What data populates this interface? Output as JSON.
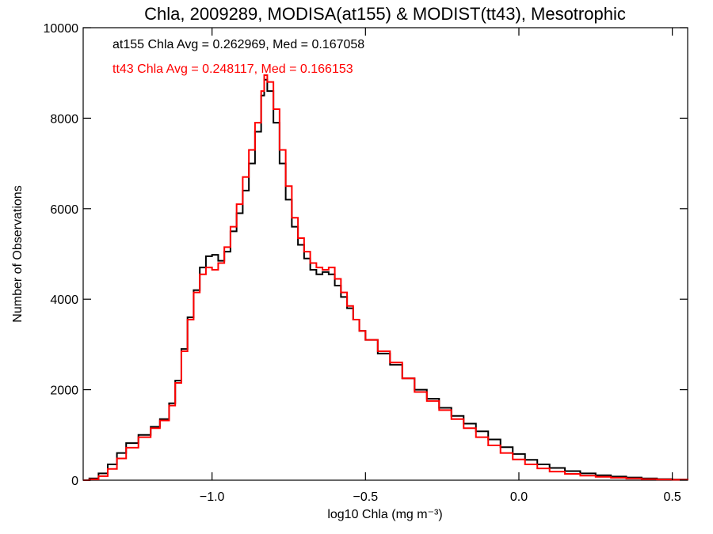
{
  "chart_data": {
    "type": "histogram-step",
    "title": "Chla, 2009289, MODISA(at155) & MODIST(tt43), Mesotrophic",
    "xlabel": "log10 Chla (mg m⁻³)",
    "ylabel": "Number of Observations",
    "xlim": [
      -1.42,
      0.55
    ],
    "ylim": [
      0,
      10000
    ],
    "x_ticks": [
      -1.0,
      -0.5,
      0.0,
      0.5
    ],
    "x_tick_labels": [
      "−1.0",
      "−0.5",
      "0.0",
      "0.5"
    ],
    "y_ticks": [
      0,
      2000,
      4000,
      6000,
      8000,
      10000
    ],
    "y_tick_labels": [
      "0",
      "2000",
      "4000",
      "6000",
      "8000",
      "10000"
    ],
    "grid": false,
    "annotations": [
      {
        "text": "at155 Chla Avg = 0.262969, Med = 0.167058",
        "color": "#000000"
      },
      {
        "text": "tt43 Chla Avg = 0.248117, Med = 0.166153",
        "color": "#ff0000"
      }
    ],
    "series": [
      {
        "color": "#000000",
        "points": [
          [
            -1.42,
            0
          ],
          [
            -1.4,
            40
          ],
          [
            -1.37,
            150
          ],
          [
            -1.34,
            350
          ],
          [
            -1.31,
            600
          ],
          [
            -1.28,
            820
          ],
          [
            -1.24,
            1000
          ],
          [
            -1.2,
            1180
          ],
          [
            -1.17,
            1350
          ],
          [
            -1.14,
            1700
          ],
          [
            -1.12,
            2200
          ],
          [
            -1.1,
            2900
          ],
          [
            -1.08,
            3600
          ],
          [
            -1.06,
            4200
          ],
          [
            -1.04,
            4700
          ],
          [
            -1.02,
            4950
          ],
          [
            -1.0,
            4980
          ],
          [
            -0.98,
            4850
          ],
          [
            -0.96,
            5050
          ],
          [
            -0.94,
            5500
          ],
          [
            -0.92,
            5900
          ],
          [
            -0.9,
            6400
          ],
          [
            -0.88,
            7000
          ],
          [
            -0.86,
            7700
          ],
          [
            -0.84,
            8500
          ],
          [
            -0.83,
            8850
          ],
          [
            -0.82,
            8600
          ],
          [
            -0.8,
            7900
          ],
          [
            -0.78,
            7000
          ],
          [
            -0.76,
            6200
          ],
          [
            -0.74,
            5600
          ],
          [
            -0.72,
            5200
          ],
          [
            -0.7,
            4900
          ],
          [
            -0.68,
            4650
          ],
          [
            -0.66,
            4550
          ],
          [
            -0.64,
            4600
          ],
          [
            -0.62,
            4550
          ],
          [
            -0.6,
            4300
          ],
          [
            -0.58,
            4050
          ],
          [
            -0.56,
            3800
          ],
          [
            -0.54,
            3550
          ],
          [
            -0.52,
            3300
          ],
          [
            -0.5,
            3100
          ],
          [
            -0.46,
            2800
          ],
          [
            -0.42,
            2550
          ],
          [
            -0.38,
            2250
          ],
          [
            -0.34,
            2000
          ],
          [
            -0.3,
            1800
          ],
          [
            -0.26,
            1600
          ],
          [
            -0.22,
            1420
          ],
          [
            -0.18,
            1250
          ],
          [
            -0.14,
            1080
          ],
          [
            -0.1,
            900
          ],
          [
            -0.06,
            730
          ],
          [
            -0.02,
            580
          ],
          [
            0.02,
            450
          ],
          [
            0.06,
            350
          ],
          [
            0.1,
            270
          ],
          [
            0.15,
            200
          ],
          [
            0.2,
            150
          ],
          [
            0.25,
            110
          ],
          [
            0.3,
            80
          ],
          [
            0.35,
            60
          ],
          [
            0.4,
            40
          ],
          [
            0.45,
            25
          ],
          [
            0.5,
            15
          ],
          [
            0.55,
            10
          ]
        ]
      },
      {
        "color": "#ff0000",
        "points": [
          [
            -1.42,
            0
          ],
          [
            -1.4,
            20
          ],
          [
            -1.37,
            90
          ],
          [
            -1.34,
            250
          ],
          [
            -1.31,
            480
          ],
          [
            -1.28,
            720
          ],
          [
            -1.24,
            950
          ],
          [
            -1.2,
            1150
          ],
          [
            -1.17,
            1320
          ],
          [
            -1.14,
            1650
          ],
          [
            -1.12,
            2150
          ],
          [
            -1.1,
            2850
          ],
          [
            -1.08,
            3550
          ],
          [
            -1.06,
            4150
          ],
          [
            -1.04,
            4550
          ],
          [
            -1.02,
            4700
          ],
          [
            -1.0,
            4650
          ],
          [
            -0.98,
            4800
          ],
          [
            -0.96,
            5150
          ],
          [
            -0.94,
            5600
          ],
          [
            -0.92,
            6100
          ],
          [
            -0.9,
            6700
          ],
          [
            -0.88,
            7300
          ],
          [
            -0.86,
            7900
          ],
          [
            -0.84,
            8600
          ],
          [
            -0.83,
            8950
          ],
          [
            -0.82,
            8800
          ],
          [
            -0.8,
            8200
          ],
          [
            -0.78,
            7300
          ],
          [
            -0.76,
            6500
          ],
          [
            -0.74,
            5800
          ],
          [
            -0.72,
            5350
          ],
          [
            -0.7,
            5050
          ],
          [
            -0.68,
            4800
          ],
          [
            -0.66,
            4700
          ],
          [
            -0.64,
            4650
          ],
          [
            -0.62,
            4700
          ],
          [
            -0.6,
            4450
          ],
          [
            -0.58,
            4150
          ],
          [
            -0.56,
            3850
          ],
          [
            -0.54,
            3550
          ],
          [
            -0.52,
            3300
          ],
          [
            -0.5,
            3100
          ],
          [
            -0.46,
            2850
          ],
          [
            -0.42,
            2600
          ],
          [
            -0.38,
            2250
          ],
          [
            -0.34,
            1950
          ],
          [
            -0.3,
            1750
          ],
          [
            -0.26,
            1550
          ],
          [
            -0.22,
            1350
          ],
          [
            -0.18,
            1150
          ],
          [
            -0.14,
            950
          ],
          [
            -0.1,
            770
          ],
          [
            -0.06,
            600
          ],
          [
            -0.02,
            460
          ],
          [
            0.02,
            350
          ],
          [
            0.06,
            260
          ],
          [
            0.1,
            190
          ],
          [
            0.15,
            140
          ],
          [
            0.2,
            100
          ],
          [
            0.25,
            75
          ],
          [
            0.3,
            55
          ],
          [
            0.35,
            40
          ],
          [
            0.4,
            25
          ],
          [
            0.45,
            15
          ],
          [
            0.5,
            10
          ],
          [
            0.55,
            5
          ]
        ]
      }
    ]
  }
}
